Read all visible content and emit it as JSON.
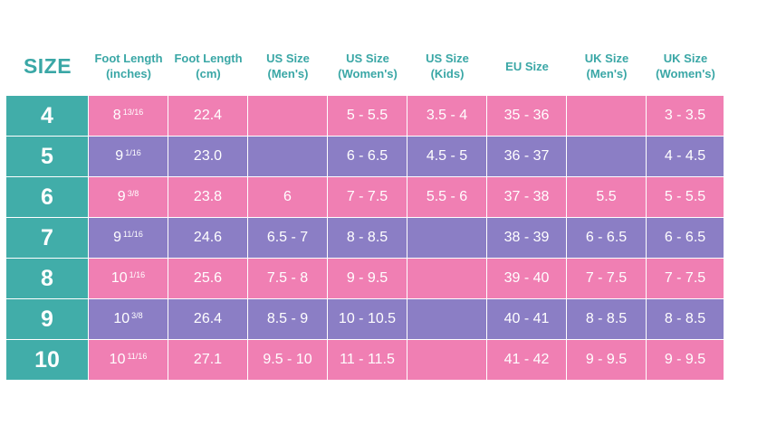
{
  "headers": [
    [
      "SIZE"
    ],
    [
      "Foot Length",
      "(inches)"
    ],
    [
      "Foot Length",
      "(cm)"
    ],
    [
      "US Size",
      "(Men's)"
    ],
    [
      "US Size",
      "(Women's)"
    ],
    [
      "US Size",
      "(Kids)"
    ],
    [
      "EU Size"
    ],
    [
      "UK Size",
      "(Men's)"
    ],
    [
      "UK Size",
      "(Women's)"
    ]
  ],
  "rows": [
    {
      "size": "4",
      "inch_whole": "8",
      "inch_frac": "13/16",
      "cm": "22.4",
      "us_men": "",
      "us_women": "5 - 5.5",
      "us_kids": "3.5 - 4",
      "eu": "35 - 36",
      "uk_men": "",
      "uk_women": "3 - 3.5"
    },
    {
      "size": "5",
      "inch_whole": "9",
      "inch_frac": "1/16",
      "cm": "23.0",
      "us_men": "",
      "us_women": "6 - 6.5",
      "us_kids": "4.5 - 5",
      "eu": "36 - 37",
      "uk_men": "",
      "uk_women": "4 - 4.5"
    },
    {
      "size": "6",
      "inch_whole": "9",
      "inch_frac": "3/8",
      "cm": "23.8",
      "us_men": "6",
      "us_women": "7 - 7.5",
      "us_kids": "5.5 - 6",
      "eu": "37 - 38",
      "uk_men": "5.5",
      "uk_women": "5 - 5.5"
    },
    {
      "size": "7",
      "inch_whole": "9",
      "inch_frac": "11/16",
      "cm": "24.6",
      "us_men": "6.5 - 7",
      "us_women": "8 - 8.5",
      "us_kids": "",
      "eu": "38 - 39",
      "uk_men": "6 - 6.5",
      "uk_women": "6 - 6.5"
    },
    {
      "size": "8",
      "inch_whole": "10",
      "inch_frac": "1/16",
      "cm": "25.6",
      "us_men": "7.5 - 8",
      "us_women": "9 - 9.5",
      "us_kids": "",
      "eu": "39 - 40",
      "uk_men": "7 - 7.5",
      "uk_women": "7 - 7.5"
    },
    {
      "size": "9",
      "inch_whole": "10",
      "inch_frac": "3/8",
      "cm": "26.4",
      "us_men": "8.5 - 9",
      "us_women": "10 - 10.5",
      "us_kids": "",
      "eu": "40 - 41",
      "uk_men": "8 - 8.5",
      "uk_women": "8 - 8.5"
    },
    {
      "size": "10",
      "inch_whole": "10",
      "inch_frac": "11/16",
      "cm": "27.1",
      "us_men": "9.5 - 10",
      "us_women": "11 - 11.5",
      "us_kids": "",
      "eu": "41 - 42",
      "uk_men": "9 - 9.5",
      "uk_women": "9 - 9.5"
    }
  ],
  "colors": {
    "teal": "#41ada9",
    "header_text": "#3aa7a6",
    "pink": "#f07fb3",
    "purple": "#8b7ec5"
  }
}
